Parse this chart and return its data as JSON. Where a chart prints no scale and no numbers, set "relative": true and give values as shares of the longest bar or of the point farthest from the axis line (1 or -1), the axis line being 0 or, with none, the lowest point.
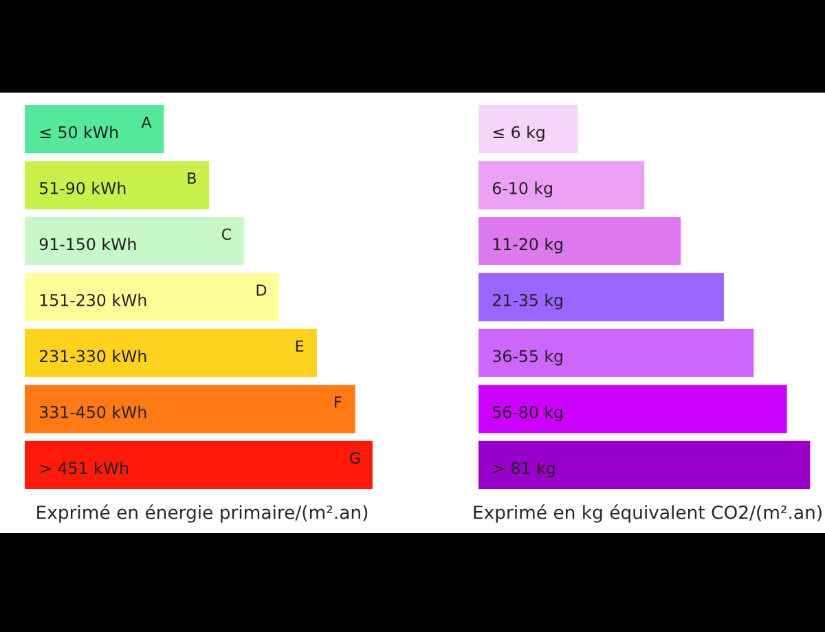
{
  "chart_data": [
    {
      "type": "bar",
      "orientation": "horizontal",
      "relative": true,
      "categories": [
        "≤ 50 kWh",
        "51-90 kWh",
        "91-150 kWh",
        "151-230 kWh",
        "231-330 kWh",
        "331-450 kWh",
        "> 451 kWh"
      ],
      "values": [
        0.4,
        0.53,
        0.63,
        0.73,
        0.84,
        0.95,
        1
      ],
      "colors": [
        "#55e89a",
        "#c8f04a",
        "#c8f8c8",
        "#ffff99",
        "#ffd21e",
        "#ff7a14",
        "#ff1a0a"
      ],
      "annotations": [
        {
          "text": "A",
          "x": 0.4,
          "y": "≤ 50 kWh"
        },
        {
          "text": "B",
          "x": 0.53,
          "y": "51-90 kWh"
        },
        {
          "text": "C",
          "x": 0.63,
          "y": "91-150 kWh"
        },
        {
          "text": "D",
          "x": 0.73,
          "y": "151-230 kWh"
        },
        {
          "text": "E",
          "x": 0.84,
          "y": "231-330 kWh"
        },
        {
          "text": "F",
          "x": 0.95,
          "y": "331-450 kWh"
        },
        {
          "text": "G",
          "x": 1,
          "y": "> 451 kWh"
        }
      ],
      "xlabel": "Exprimé en énergie primaire/(m².an)"
    },
    {
      "type": "bar",
      "orientation": "horizontal",
      "relative": true,
      "categories": [
        "≤ 6 kg",
        "6-10 kg",
        "11-20 kg",
        "21-35 kg",
        "36-55 kg",
        "56-80 kg",
        "> 81 kg"
      ],
      "values": [
        0.3,
        0.5,
        0.61,
        0.74,
        0.83,
        0.93,
        1
      ],
      "colors": [
        "#f5d6f8",
        "#eca0f5",
        "#dd78ee",
        "#9966ff",
        "#cc66ff",
        "#cc00ff",
        "#9900cc"
      ],
      "xlabel": "Exprimé en kg équivalent CO2/(m².an)"
    }
  ]
}
